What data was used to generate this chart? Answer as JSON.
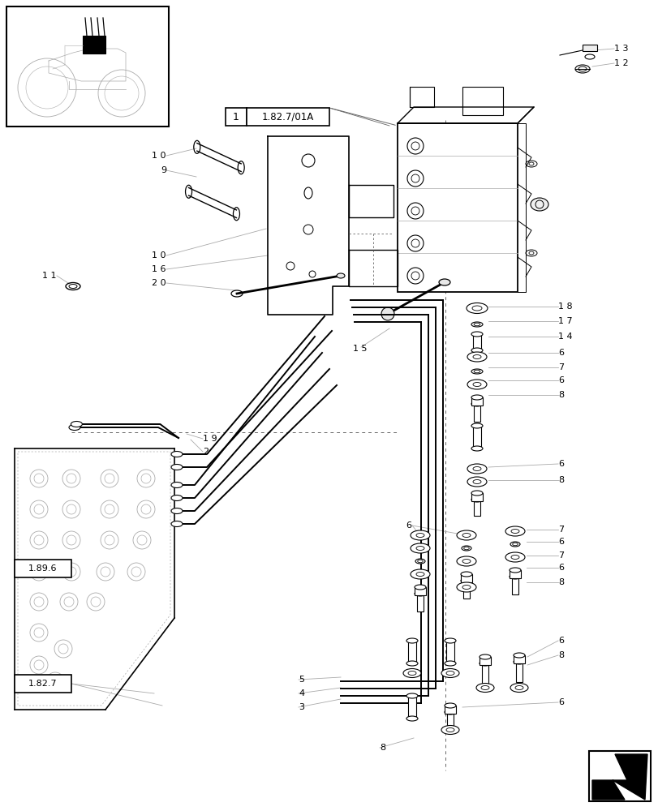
{
  "bg_color": "#ffffff",
  "lc": "#000000",
  "gray": "#aaaaaa",
  "dgray": "#666666",
  "fig_w": 8.12,
  "fig_h": 10.0,
  "dpi": 100
}
